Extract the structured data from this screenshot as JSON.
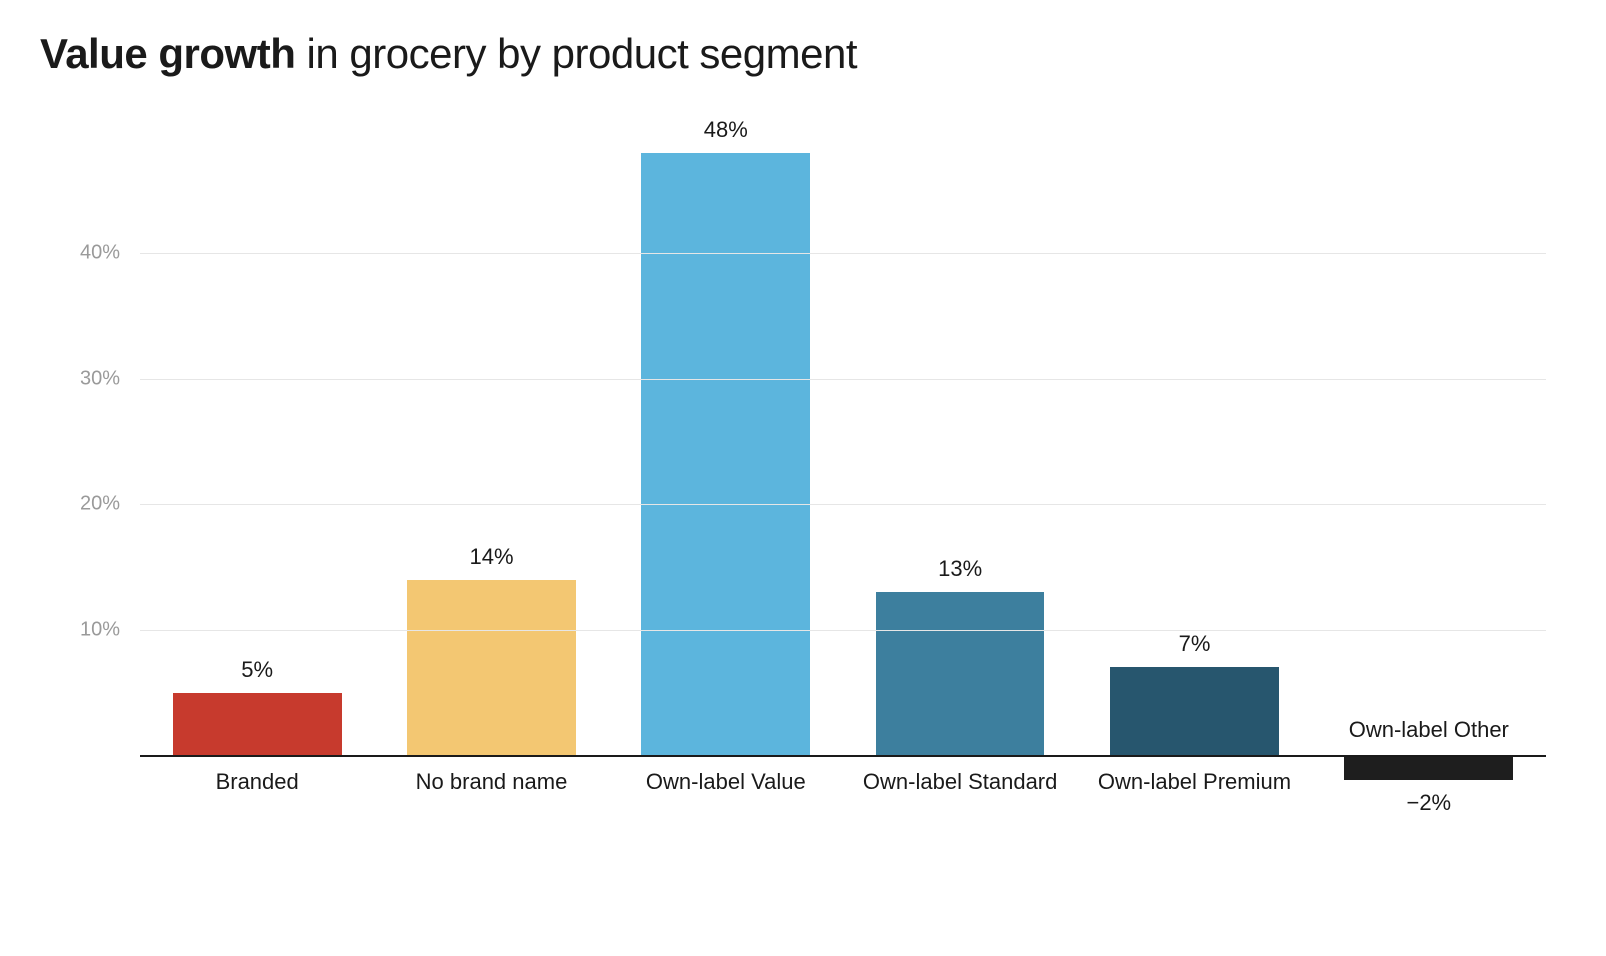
{
  "chart": {
    "type": "bar",
    "title_bold": "Value growth",
    "title_rest": " in grocery by product segment",
    "title_fontsize": 42,
    "title_color": "#1a1a1a",
    "background_color": "#ffffff",
    "grid_color": "#e6e6e6",
    "axis_color": "#1a1a1a",
    "ylim_min": -5,
    "ylim_max": 50,
    "yticks": [
      10,
      20,
      30,
      40
    ],
    "ytick_suffix": "%",
    "ytick_fontsize": 20,
    "ytick_color": "#9a9a9a",
    "bar_width_ratio": 0.72,
    "value_label_fontsize": 22,
    "value_label_color": "#1a1a1a",
    "x_label_fontsize": 22,
    "x_label_color": "#1a1a1a",
    "categories": [
      "Branded",
      "No brand name",
      "Own-label Value",
      "Own-label Standard",
      "Own-label Premium",
      "Own-label Other"
    ],
    "values": [
      5,
      14,
      48,
      13,
      7,
      -2
    ],
    "value_labels": [
      "5%",
      "14%",
      "48%",
      "13%",
      "7%",
      "−2%"
    ],
    "bar_colors": [
      "#c73a2d",
      "#f3c772",
      "#5cb5dd",
      "#3d7f9e",
      "#27566e",
      "#1e1e1e"
    ]
  }
}
